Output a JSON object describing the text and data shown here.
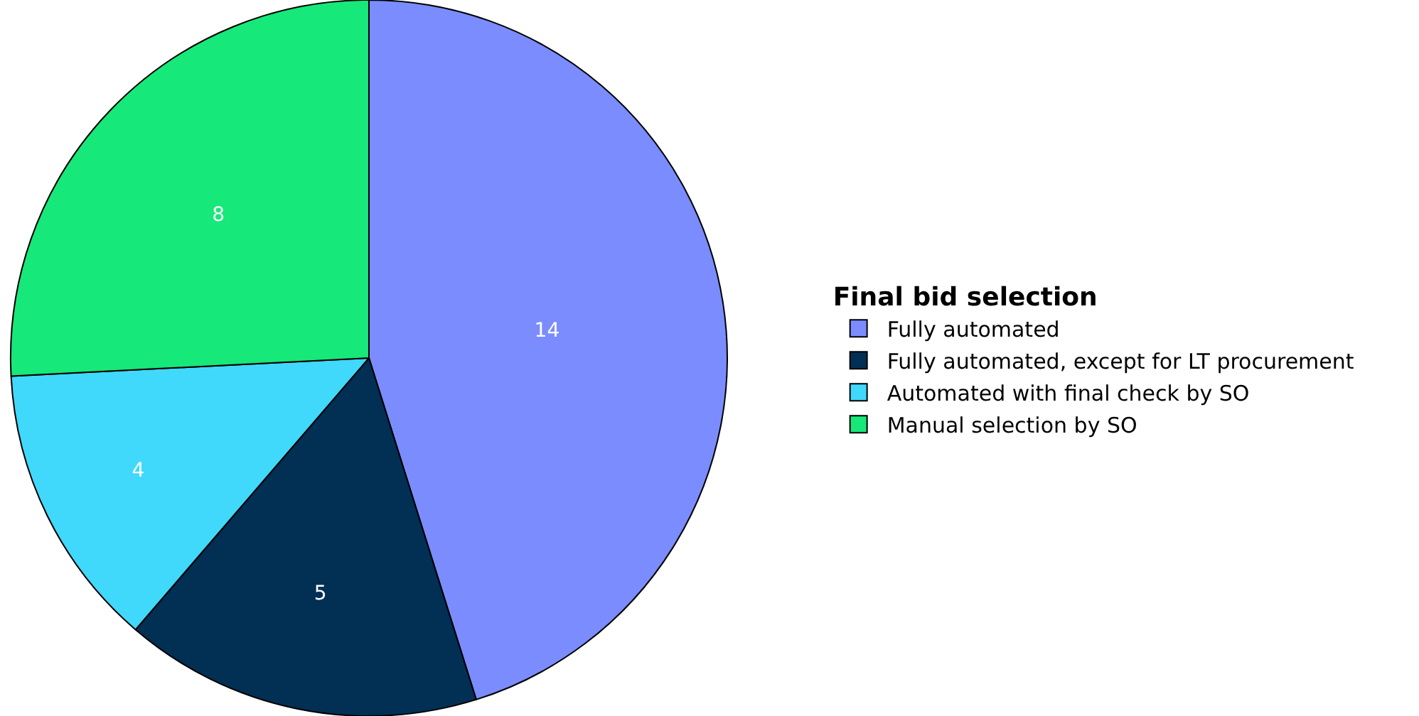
{
  "chart_data": {
    "type": "pie",
    "legend_title": "Final bid selection",
    "categories": [
      "Fully automated",
      "Fully automated, except for LT procurement",
      "Automated with final check by SO",
      "Manual selection by SO"
    ],
    "values": [
      14,
      5,
      4,
      8
    ],
    "colors": [
      "#7b8cff",
      "#022f54",
      "#40d8fb",
      "#16e87a"
    ],
    "data_labels": true,
    "legend": "right"
  }
}
